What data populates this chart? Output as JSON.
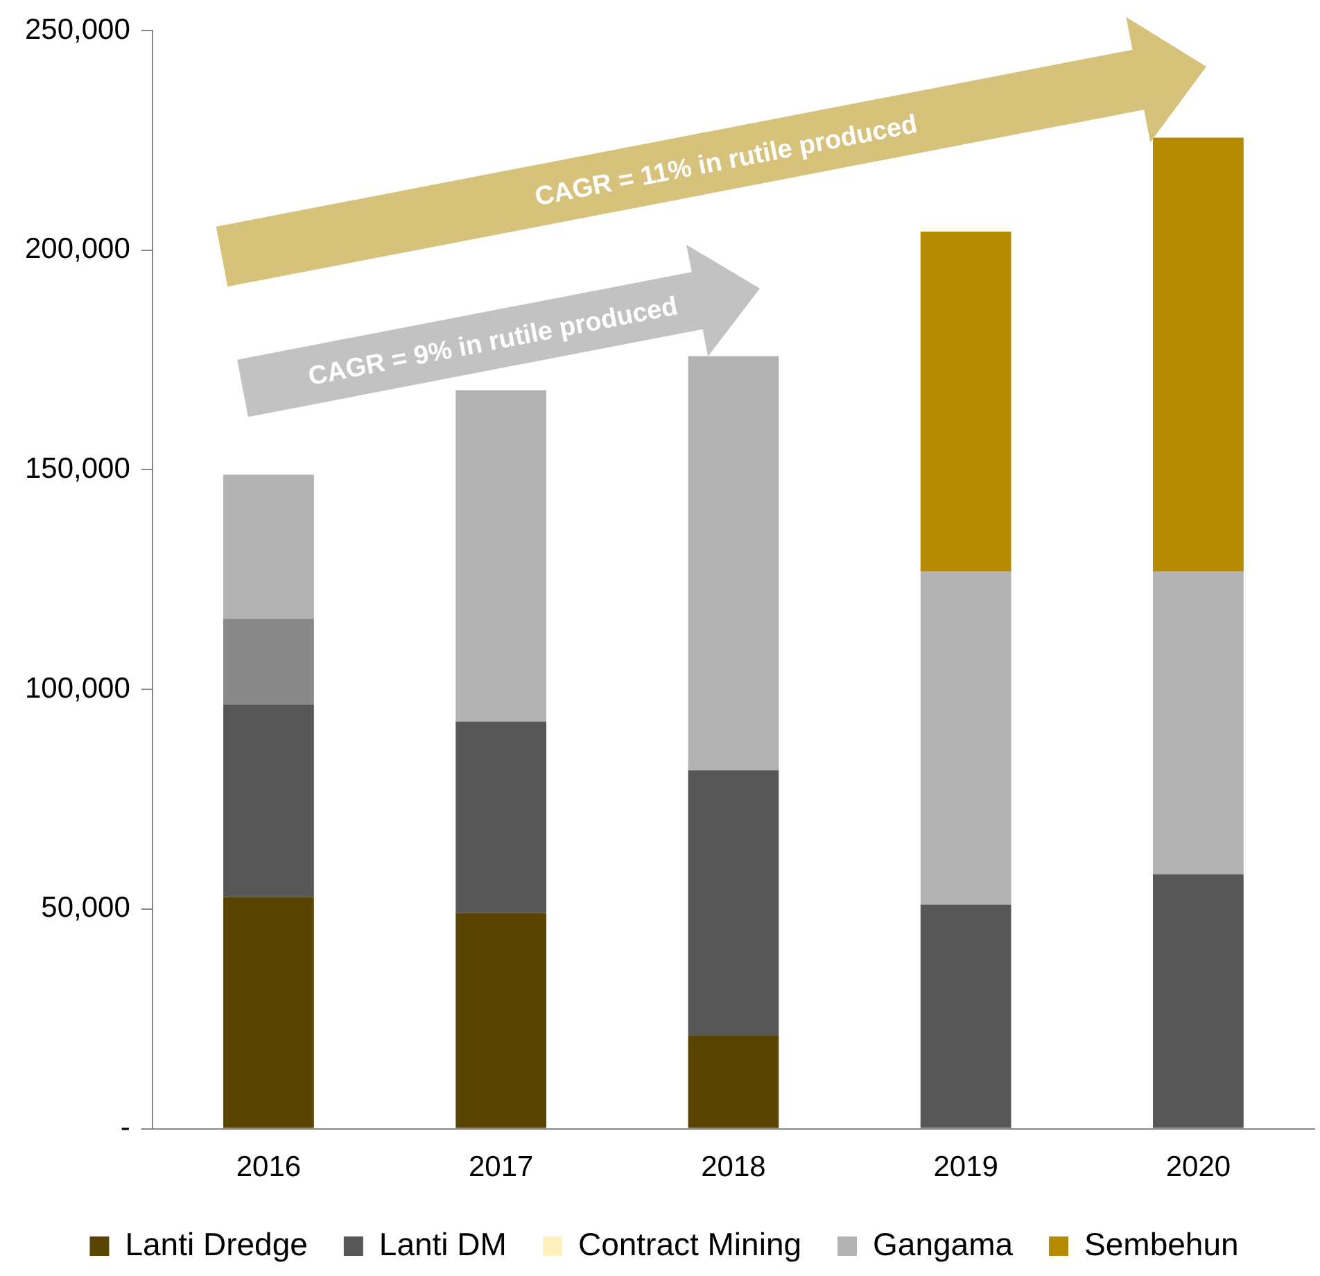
{
  "chart_data": {
    "type": "bar",
    "stacked": true,
    "categories": [
      "2016",
      "2017",
      "2018",
      "2019",
      "2020"
    ],
    "series": [
      {
        "name": "Lanti Dredge",
        "color": "#5a4500",
        "values": [
          52700.0,
          49100.0,
          21100.0,
          null,
          null
        ]
      },
      {
        "name": "Lanti DM",
        "color": "#575757",
        "values": [
          43900.0,
          43600.0,
          60500.0,
          51000.0,
          57900.0
        ]
      },
      {
        "color": "#888888",
        "values": [
          19500.0,
          null,
          null,
          null,
          null
        ]
      },
      {
        "name": "Contract Mining",
        "color": "#fff0c0",
        "values": [
          null,
          null,
          null,
          null,
          null
        ]
      },
      {
        "name": "Gangama",
        "color": "#b3b3b3",
        "values": [
          32800.0,
          75400.0,
          94300.0,
          75800.0,
          68900.0
        ]
      },
      {
        "name": "Sembehun",
        "color": "#b38a00",
        "values": [
          null,
          null,
          null,
          77400.0,
          98800.0
        ]
      }
    ],
    "ylim": [
      0,
      250000
    ],
    "yticks": [
      {
        "value": 0,
        "label": "-"
      },
      {
        "value": 50000,
        "label": "50,000"
      },
      {
        "value": 100000,
        "label": "100,000"
      },
      {
        "value": 150000,
        "label": "150,000"
      },
      {
        "value": 200000,
        "label": "200,000"
      },
      {
        "value": 250000,
        "label": "250,000"
      }
    ],
    "grid": false,
    "legend": "bottom",
    "annotations": [
      "CAGR = 11% in rutile produced",
      "CAGR = 9% in rutile produced"
    ]
  }
}
